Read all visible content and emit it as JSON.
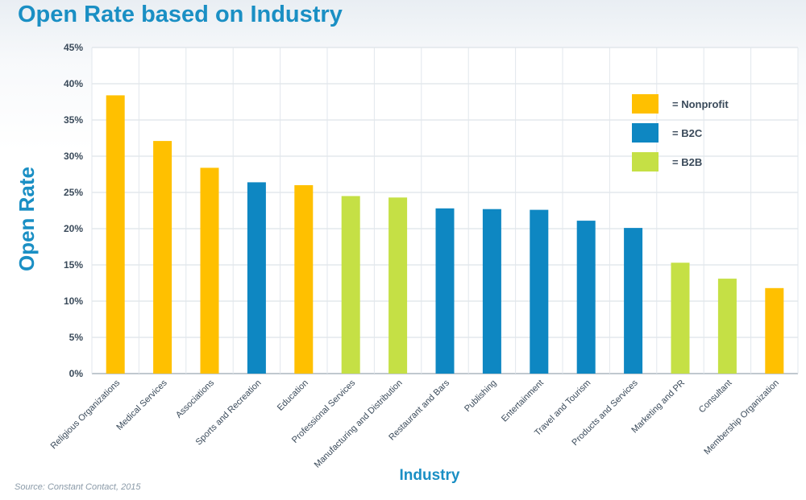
{
  "chart_data": {
    "type": "bar",
    "title": "Open Rate based on Industry",
    "xlabel": "Industry",
    "ylabel": "Open Rate",
    "ylim": [
      0,
      45
    ],
    "yticks": [
      0,
      5,
      10,
      15,
      20,
      25,
      30,
      35,
      40,
      45
    ],
    "ytick_labels": [
      "0%",
      "5%",
      "10%",
      "15%",
      "20%",
      "25%",
      "30%",
      "35%",
      "40%",
      "45%"
    ],
    "grid": true,
    "categories": [
      "Religious Organizations",
      "Medical Services",
      "Associations",
      "Sports and Recreation",
      "Education",
      "Professional Services",
      "Manufacturing and Distribution",
      "Restaurant and Bars",
      "Publishing",
      "Entertainment",
      "Travel and Tourism",
      "Products and Services",
      "Marketing and PR",
      "Consultant",
      "Membership Organization"
    ],
    "values": [
      38.4,
      32.1,
      28.4,
      26.4,
      26.0,
      24.5,
      24.3,
      22.8,
      22.7,
      22.6,
      21.1,
      20.1,
      15.3,
      13.1,
      11.8
    ],
    "groups": [
      "Nonprofit",
      "Nonprofit",
      "Nonprofit",
      "B2C",
      "Nonprofit",
      "B2B",
      "B2B",
      "B2C",
      "B2C",
      "B2C",
      "B2C",
      "B2C",
      "B2B",
      "B2B",
      "Nonprofit"
    ],
    "legend": {
      "position": "top-right",
      "entries": [
        {
          "key": "Nonprofit",
          "label": "= Nonprofit",
          "color": "#ffc000"
        },
        {
          "key": "B2C",
          "label": "= B2C",
          "color": "#0e87c2"
        },
        {
          "key": "B2B",
          "label": "= B2B",
          "color": "#c5e045"
        }
      ]
    }
  },
  "source": "Source: Constant Contact, 2015"
}
